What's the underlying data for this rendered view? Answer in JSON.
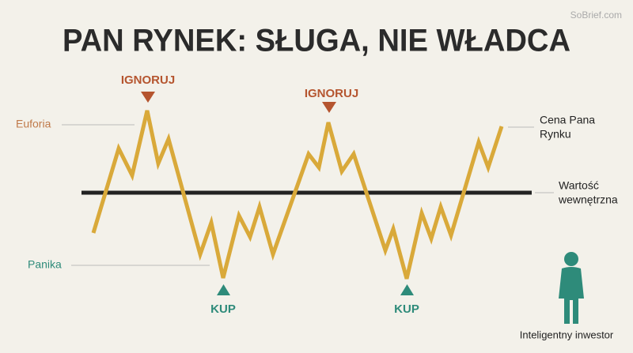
{
  "watermark": "SoBrief.com",
  "title": "PAN RYNEK: SŁUGA, NIE WŁADCA",
  "labels": {
    "ignore": [
      "IGNORUJ",
      "IGNORUJ"
    ],
    "buy": [
      "KUP",
      "KUP"
    ],
    "euphoria": "Euforia",
    "panic": "Panika",
    "market_price": [
      "Cena Pana",
      "Rynku"
    ],
    "intrinsic_value": [
      "Wartość",
      "wewnętrzna"
    ],
    "investor": "Inteligentny inwestor"
  }
}
